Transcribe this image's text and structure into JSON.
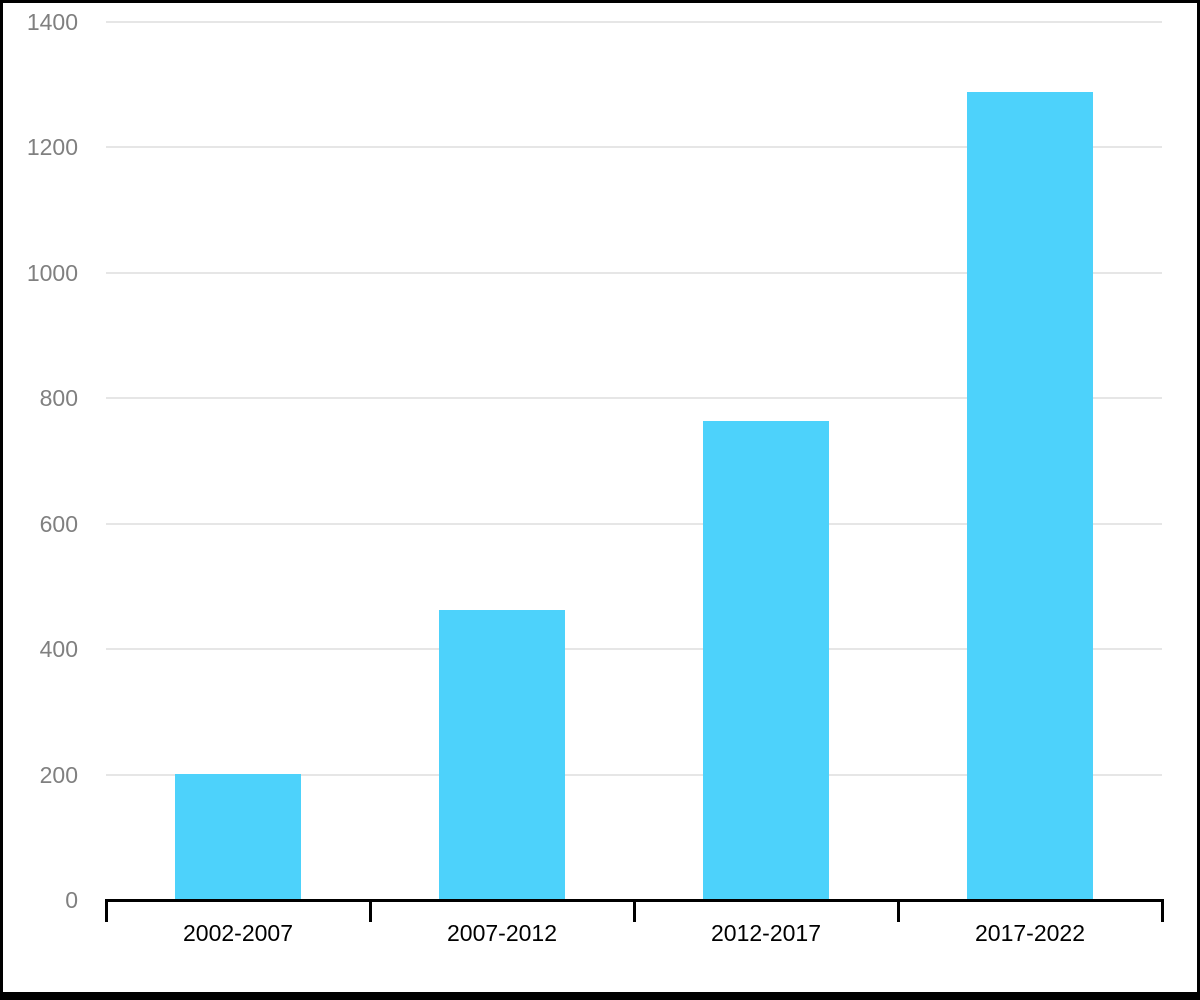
{
  "chart_data": {
    "type": "bar",
    "categories": [
      "2002-2007",
      "2007-2012",
      "2012-2017",
      "2017-2022"
    ],
    "values": [
      201,
      462,
      763,
      1288
    ],
    "title": "",
    "xlabel": "",
    "ylabel": "",
    "ylim": [
      0,
      1400
    ],
    "ytick_step": 200,
    "ytick_labels": [
      "0",
      "200",
      "400",
      "600",
      "800",
      "1000",
      "1200",
      "1400"
    ],
    "grid": true,
    "legend": "none",
    "bar_color": "#4DD2FB",
    "gridline_color": "#E6E6E6",
    "axis_color": "#000000",
    "y_label_color": "#808080",
    "x_label_color": "#000000",
    "background_color": "#FFFFFF",
    "frame_border_color": "#000000"
  }
}
